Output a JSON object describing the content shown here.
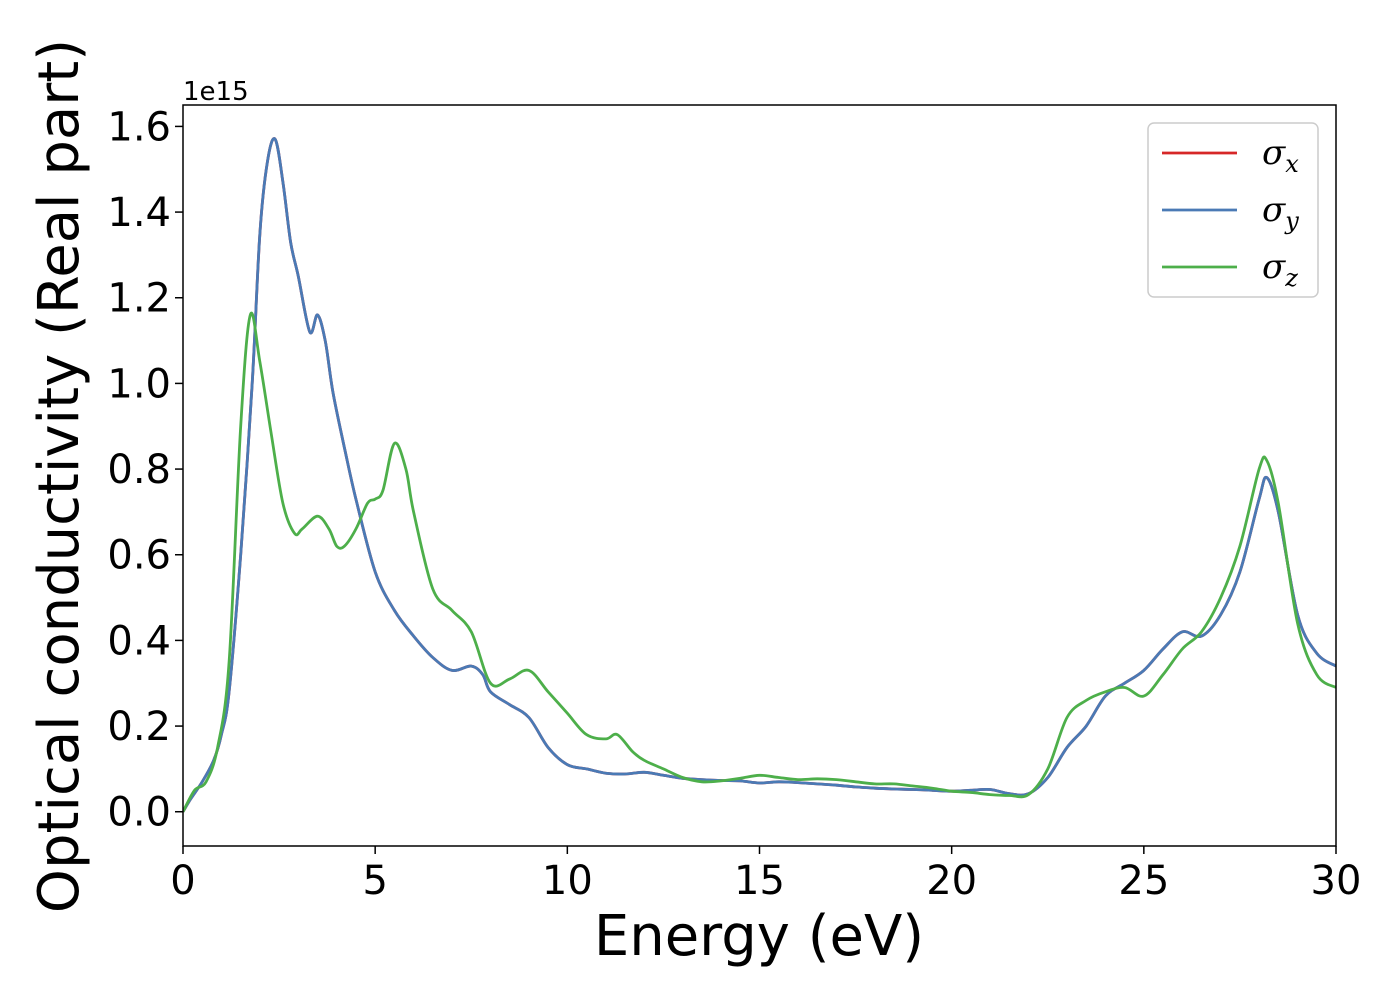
{
  "chart_data": {
    "type": "line",
    "xlabel": "Energy (eV)",
    "ylabel": "Optical conductivity (Real part)",
    "y_offset_text": "1e15",
    "y_scale_factor": 1000000000000000.0,
    "xlim": [
      0,
      30
    ],
    "ylim": [
      -0.08,
      1.65
    ],
    "x_ticks": [
      0,
      5,
      10,
      15,
      20,
      25,
      30
    ],
    "x_tick_labels": [
      "0",
      "5",
      "10",
      "15",
      "20",
      "25",
      "30"
    ],
    "y_ticks": [
      0.0,
      0.2,
      0.4,
      0.6,
      0.8,
      1.0,
      1.2,
      1.4,
      1.6
    ],
    "y_tick_labels": [
      "0.0",
      "0.2",
      "0.4",
      "0.6",
      "0.8",
      "1.0",
      "1.2",
      "1.4",
      "1.6"
    ],
    "grid": false,
    "legend_position": "top-right",
    "series": [
      {
        "name": "σx",
        "name_base": "σ",
        "name_sub": "x",
        "color": "#d62728",
        "x": [
          0,
          0.2,
          0.5,
          0.8,
          1.0,
          1.2,
          1.5,
          1.8,
          2.0,
          2.2,
          2.4,
          2.6,
          2.8,
          3.0,
          3.3,
          3.5,
          3.7,
          3.9,
          4.2,
          4.5,
          5.0,
          5.5,
          6.0,
          6.5,
          7.0,
          7.5,
          7.8,
          8.0,
          8.5,
          9.0,
          9.5,
          10.0,
          10.5,
          11.0,
          11.5,
          12.0,
          12.5,
          13.0,
          13.5,
          14.0,
          14.5,
          15.0,
          15.5,
          16.0,
          16.5,
          17.0,
          17.5,
          18.0,
          18.5,
          19.0,
          19.5,
          20.0,
          20.5,
          21.0,
          21.5,
          22.0,
          22.5,
          23.0,
          23.5,
          24.0,
          24.5,
          25.0,
          25.5,
          26.0,
          26.5,
          27.0,
          27.5,
          28.0,
          28.2,
          28.5,
          29.0,
          29.5,
          30.0
        ],
        "y": [
          0.0,
          0.03,
          0.07,
          0.12,
          0.18,
          0.28,
          0.6,
          1.0,
          1.35,
          1.52,
          1.57,
          1.47,
          1.33,
          1.25,
          1.12,
          1.16,
          1.1,
          0.98,
          0.85,
          0.73,
          0.56,
          0.47,
          0.41,
          0.36,
          0.33,
          0.34,
          0.32,
          0.28,
          0.25,
          0.22,
          0.15,
          0.11,
          0.1,
          0.09,
          0.088,
          0.092,
          0.085,
          0.078,
          0.075,
          0.073,
          0.072,
          0.067,
          0.07,
          0.068,
          0.065,
          0.062,
          0.058,
          0.055,
          0.053,
          0.052,
          0.05,
          0.048,
          0.05,
          0.052,
          0.042,
          0.042,
          0.08,
          0.15,
          0.2,
          0.27,
          0.3,
          0.33,
          0.38,
          0.42,
          0.41,
          0.46,
          0.56,
          0.73,
          0.78,
          0.7,
          0.46,
          0.37,
          0.34
        ]
      },
      {
        "name": "σy",
        "name_base": "σ",
        "name_sub": "y",
        "color": "#4a7ab5",
        "x": [
          0,
          0.2,
          0.5,
          0.8,
          1.0,
          1.2,
          1.5,
          1.8,
          2.0,
          2.2,
          2.4,
          2.6,
          2.8,
          3.0,
          3.3,
          3.5,
          3.7,
          3.9,
          4.2,
          4.5,
          5.0,
          5.5,
          6.0,
          6.5,
          7.0,
          7.5,
          7.8,
          8.0,
          8.5,
          9.0,
          9.5,
          10.0,
          10.5,
          11.0,
          11.5,
          12.0,
          12.5,
          13.0,
          13.5,
          14.0,
          14.5,
          15.0,
          15.5,
          16.0,
          16.5,
          17.0,
          17.5,
          18.0,
          18.5,
          19.0,
          19.5,
          20.0,
          20.5,
          21.0,
          21.5,
          22.0,
          22.5,
          23.0,
          23.5,
          24.0,
          24.5,
          25.0,
          25.5,
          26.0,
          26.5,
          27.0,
          27.5,
          28.0,
          28.2,
          28.5,
          29.0,
          29.5,
          30.0
        ],
        "y": [
          0.0,
          0.03,
          0.07,
          0.12,
          0.18,
          0.28,
          0.6,
          1.0,
          1.35,
          1.52,
          1.57,
          1.47,
          1.33,
          1.25,
          1.12,
          1.16,
          1.1,
          0.98,
          0.85,
          0.73,
          0.56,
          0.47,
          0.41,
          0.36,
          0.33,
          0.34,
          0.32,
          0.28,
          0.25,
          0.22,
          0.15,
          0.11,
          0.1,
          0.09,
          0.088,
          0.092,
          0.085,
          0.078,
          0.075,
          0.073,
          0.072,
          0.067,
          0.07,
          0.068,
          0.065,
          0.062,
          0.058,
          0.055,
          0.053,
          0.052,
          0.05,
          0.048,
          0.05,
          0.052,
          0.042,
          0.042,
          0.08,
          0.15,
          0.2,
          0.27,
          0.3,
          0.33,
          0.38,
          0.42,
          0.41,
          0.46,
          0.56,
          0.73,
          0.78,
          0.7,
          0.46,
          0.37,
          0.34
        ]
      },
      {
        "name": "σz",
        "name_base": "σ",
        "name_sub": "z",
        "color": "#4daf4a",
        "x": [
          0,
          0.3,
          0.6,
          0.9,
          1.2,
          1.5,
          1.75,
          2.0,
          2.3,
          2.6,
          2.9,
          3.1,
          3.5,
          3.8,
          4.0,
          4.2,
          4.5,
          4.8,
          5.0,
          5.2,
          5.5,
          5.8,
          6.0,
          6.5,
          7.0,
          7.5,
          8.0,
          8.5,
          9.0,
          9.5,
          10.0,
          10.5,
          11.0,
          11.3,
          11.7,
          12.0,
          12.5,
          13.0,
          13.5,
          14.0,
          14.5,
          15.0,
          15.5,
          16.0,
          16.5,
          17.0,
          17.5,
          18.0,
          18.5,
          19.0,
          19.5,
          20.0,
          20.5,
          21.0,
          21.5,
          22.0,
          22.5,
          23.0,
          23.5,
          24.0,
          24.5,
          25.0,
          25.5,
          26.0,
          26.5,
          27.0,
          27.5,
          28.0,
          28.2,
          28.5,
          29.0,
          29.5,
          30.0
        ],
        "y": [
          0.0,
          0.05,
          0.07,
          0.15,
          0.35,
          0.9,
          1.16,
          1.05,
          0.88,
          0.72,
          0.65,
          0.66,
          0.69,
          0.66,
          0.62,
          0.62,
          0.66,
          0.72,
          0.73,
          0.75,
          0.86,
          0.8,
          0.7,
          0.52,
          0.47,
          0.42,
          0.3,
          0.31,
          0.33,
          0.28,
          0.23,
          0.18,
          0.17,
          0.18,
          0.14,
          0.12,
          0.1,
          0.08,
          0.07,
          0.072,
          0.078,
          0.085,
          0.08,
          0.075,
          0.077,
          0.075,
          0.07,
          0.065,
          0.065,
          0.06,
          0.055,
          0.048,
          0.045,
          0.04,
          0.038,
          0.04,
          0.1,
          0.22,
          0.26,
          0.28,
          0.29,
          0.27,
          0.32,
          0.38,
          0.42,
          0.5,
          0.62,
          0.8,
          0.82,
          0.72,
          0.44,
          0.32,
          0.29
        ]
      }
    ]
  }
}
